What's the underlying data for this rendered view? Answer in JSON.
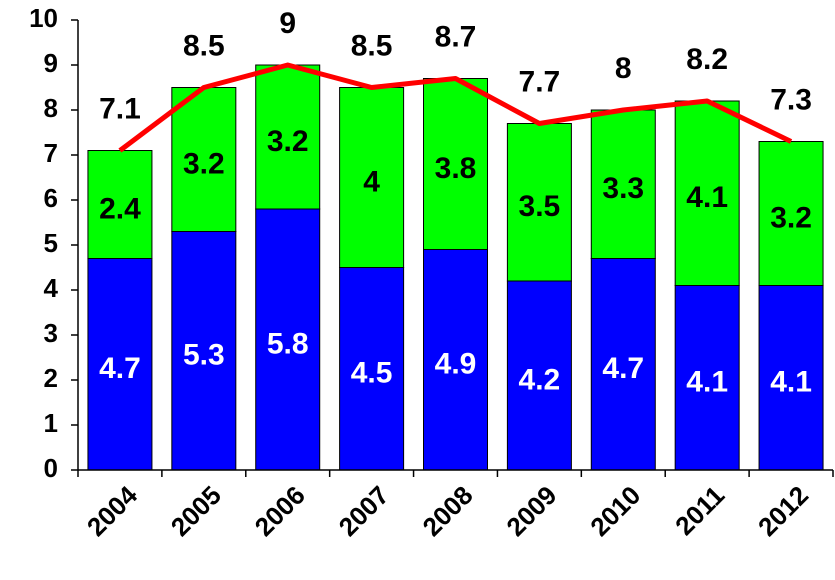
{
  "chart_data": {
    "type": "bar",
    "stacked": true,
    "categories": [
      "2004",
      "2005",
      "2006",
      "2007",
      "2008",
      "2009",
      "2010",
      "2011",
      "2012"
    ],
    "series": [
      {
        "type": "bar",
        "color": "#0000ff",
        "label_color": "#ffffff",
        "values": [
          4.7,
          5.3,
          5.8,
          4.5,
          4.9,
          4.2,
          4.7,
          4.1,
          4.1
        ]
      },
      {
        "type": "bar",
        "color": "#00ff00",
        "label_color": "#000000",
        "values": [
          2.4,
          3.2,
          3.2,
          4,
          3.8,
          3.5,
          3.3,
          4.1,
          3.2
        ]
      },
      {
        "type": "line",
        "color": "#ff0000",
        "label_color": "#000000",
        "values": [
          7.1,
          8.5,
          9,
          8.5,
          8.7,
          7.7,
          8,
          8.2,
          7.3
        ]
      }
    ],
    "ylim": [
      0,
      10
    ],
    "yticks": [
      0,
      1,
      2,
      3,
      4,
      5,
      6,
      7,
      8,
      9,
      10
    ],
    "grid": false
  }
}
